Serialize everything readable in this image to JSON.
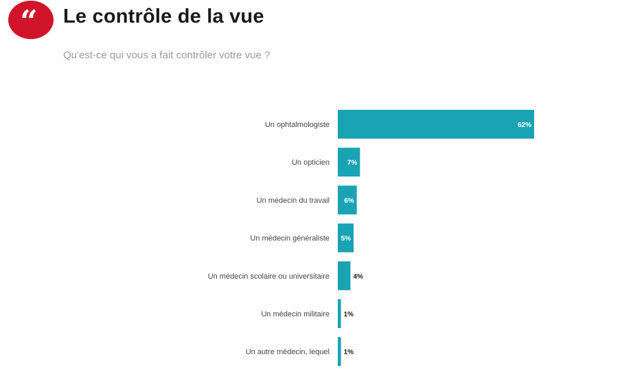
{
  "header": {
    "title": "Le contrôle de la vue",
    "subtitle": "Qu'est-ce qui vous a fait contrôler votre vue ?",
    "note": ""
  },
  "colors": {
    "accent": "#d0152a",
    "bar": "#1aa3b3",
    "bar_dark": "#178f9d"
  },
  "icons": {
    "quote": "quote-icon"
  },
  "chart_data": {
    "type": "bar",
    "orientation": "horizontal",
    "title": "Le contrôle de la vue",
    "xlabel": "",
    "ylabel": "",
    "xlim": [
      0,
      100
    ],
    "grid": false,
    "categories": [
      "Un ophtalmologiste",
      "Un opticien",
      "Un médecin du travail",
      "Un médecin généraliste",
      "Un médecin scolaire ou universitaire",
      "Un médecin militaire",
      "Un autre médecin, lequel"
    ],
    "values": [
      62,
      7,
      6,
      5,
      4,
      1,
      1
    ],
    "labels": [
      "62%",
      "7%",
      "6%",
      "5%",
      "4%",
      "1%",
      "1%"
    ]
  }
}
